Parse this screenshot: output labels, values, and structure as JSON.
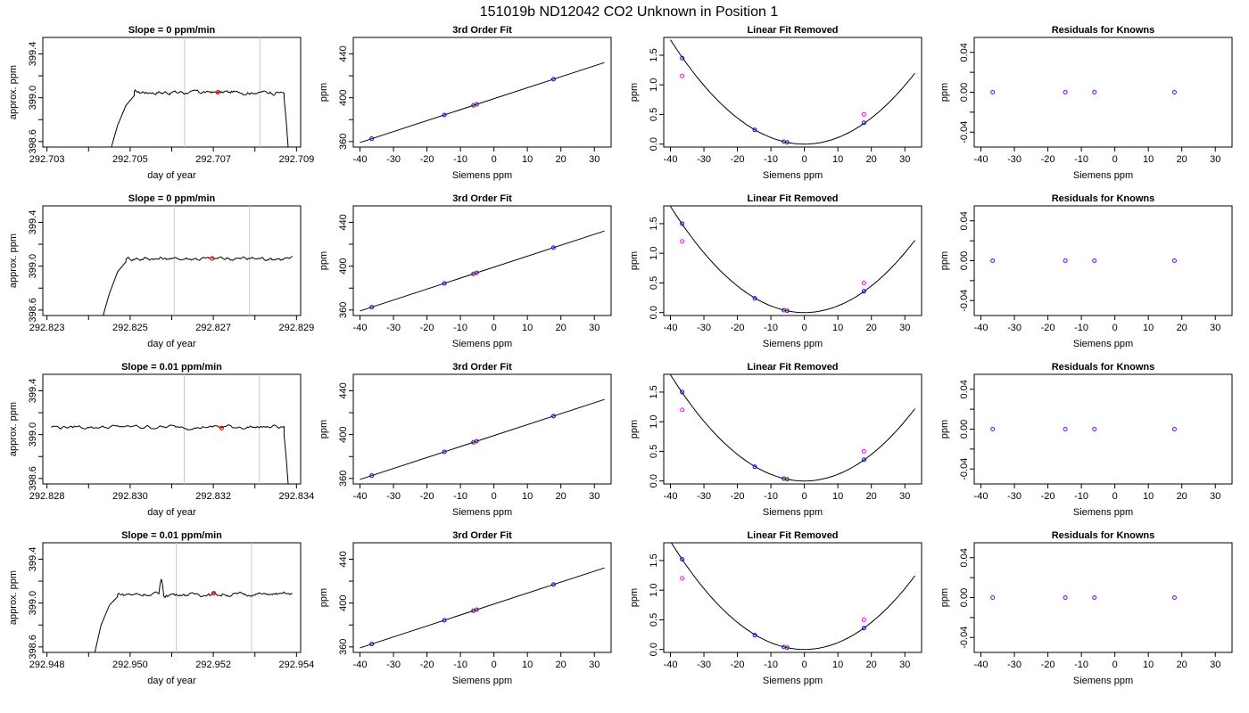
{
  "page_title": "151019b     ND12042    CO2 Unknown in Position  1",
  "chart_data": [
    {
      "type": "line",
      "row": 0,
      "col": 0,
      "title": "Slope =  0  ppm/min",
      "xlabel": "day of year",
      "ylabel": "approx. ppm",
      "xlim": [
        292.7029,
        292.7091
      ],
      "ylim": [
        398.55,
        399.55
      ],
      "xticks": [
        292.703,
        292.704,
        292.705,
        292.706,
        292.707,
        292.708,
        292.709
      ],
      "xticklabels": [
        "292.703",
        "",
        "292.705",
        "",
        "292.707",
        "",
        "292.709"
      ],
      "yticks": [
        398.6,
        398.8,
        399.0,
        399.2,
        399.4
      ],
      "yticklabels": [
        "398.6",
        "",
        "399.0",
        "",
        "399.4"
      ],
      "rise": [
        [
          292.70455,
          398.55
        ],
        [
          292.7047,
          398.75
        ],
        [
          292.7049,
          398.93
        ],
        [
          292.7051,
          399.02
        ]
      ],
      "plateau_x": [
        292.7051,
        292.7087
      ],
      "plateau_mean": 399.05,
      "plateau_noise": 0.012,
      "fall": [
        [
          292.7087,
          399.0
        ],
        [
          292.70875,
          398.8
        ],
        [
          292.7088,
          398.55
        ]
      ],
      "vlines": [
        292.70631,
        292.70812
      ],
      "marker": [
        292.70711,
        399.05
      ]
    },
    {
      "type": "line",
      "row": 1,
      "col": 0,
      "title": "Slope =  0  ppm/min",
      "xlabel": "day of year",
      "ylabel": "approx. ppm",
      "xlim": [
        292.8229,
        292.8291
      ],
      "ylim": [
        398.55,
        399.55
      ],
      "xticks": [
        292.823,
        292.824,
        292.825,
        292.826,
        292.827,
        292.828,
        292.829
      ],
      "xticklabels": [
        "292.823",
        "",
        "292.825",
        "",
        "292.827",
        "",
        "292.829"
      ],
      "yticks": [
        398.6,
        398.8,
        399.0,
        399.2,
        399.4
      ],
      "yticklabels": [
        "398.6",
        "",
        "399.0",
        "",
        "399.4"
      ],
      "rise": [
        [
          292.82435,
          398.55
        ],
        [
          292.8245,
          398.75
        ],
        [
          292.8247,
          398.95
        ],
        [
          292.8249,
          399.04
        ]
      ],
      "plateau_x": [
        292.8249,
        292.8289
      ],
      "plateau_mean": 399.07,
      "plateau_noise": 0.012,
      "fall": [],
      "vlines": [
        292.82606,
        292.82787
      ],
      "marker": [
        292.82697,
        399.07
      ]
    },
    {
      "type": "line",
      "row": 2,
      "col": 0,
      "title": "Slope =  0.01  ppm/min",
      "xlabel": "day of year",
      "ylabel": "approx. ppm",
      "xlim": [
        292.8279,
        292.8341
      ],
      "ylim": [
        398.55,
        399.55
      ],
      "xticks": [
        292.828,
        292.829,
        292.83,
        292.831,
        292.832,
        292.833,
        292.834
      ],
      "xticklabels": [
        "292.828",
        "",
        "292.830",
        "",
        "292.832",
        "",
        "292.834"
      ],
      "yticks": [
        398.6,
        398.8,
        399.0,
        399.2,
        399.4
      ],
      "yticklabels": [
        "398.6",
        "",
        "399.0",
        "",
        "399.4"
      ],
      "rise": [],
      "plateau_x": [
        292.8281,
        292.8337
      ],
      "plateau_mean": 399.07,
      "plateau_noise": 0.012,
      "fall": [
        [
          292.8337,
          399.0
        ],
        [
          292.83375,
          398.8
        ],
        [
          292.8338,
          398.55
        ]
      ],
      "vlines": [
        292.8313,
        292.83311
      ],
      "marker": [
        292.8322,
        399.06
      ]
    },
    {
      "type": "line",
      "row": 3,
      "col": 0,
      "title": "Slope =  0.01  ppm/min",
      "xlabel": "day of year",
      "ylabel": "approx. ppm",
      "xlim": [
        292.9479,
        292.9541
      ],
      "ylim": [
        398.55,
        399.55
      ],
      "xticks": [
        292.948,
        292.949,
        292.95,
        292.951,
        292.952,
        292.953,
        292.954
      ],
      "xticklabels": [
        "292.948",
        "",
        "292.950",
        "",
        "292.952",
        "",
        "292.954"
      ],
      "yticks": [
        398.6,
        398.8,
        399.0,
        399.2,
        399.4
      ],
      "yticklabels": [
        "398.6",
        "",
        "399.0",
        "",
        "399.4"
      ],
      "rise": [
        [
          292.94915,
          398.55
        ],
        [
          292.9493,
          398.8
        ],
        [
          292.9495,
          398.98
        ],
        [
          292.9497,
          399.06
        ]
      ],
      "plateau_x": [
        292.9497,
        292.9539
      ],
      "plateau_mean": 399.08,
      "plateau_noise": 0.012,
      "spike": [
        292.95075,
        399.22
      ],
      "fall": [],
      "vlines": [
        292.95111,
        292.95292
      ],
      "marker": [
        292.95201,
        399.09
      ]
    },
    {
      "type": "scatter",
      "row": 0,
      "col": 1,
      "title": "3rd Order Fit",
      "xlabel": "Siemens ppm",
      "ylabel": "ppm",
      "xlim": [
        -42,
        35
      ],
      "ylim": [
        355,
        455
      ],
      "xticks": [
        -40,
        -30,
        -20,
        -10,
        0,
        10,
        20,
        30
      ],
      "yticks": [
        360,
        380,
        400,
        420,
        440
      ],
      "yticklabels": [
        "360",
        "",
        "400",
        "",
        "440"
      ],
      "line": {
        "slope": 1.0,
        "intercept": 399.1,
        "xrange": [
          -40,
          33
        ]
      },
      "points": [
        [
          -36.5,
          362.6
        ],
        [
          -14.8,
          384.3
        ],
        [
          -6.1,
          393.0
        ],
        [
          -5.2,
          393.9
        ],
        [
          17.8,
          416.9
        ]
      ],
      "unknown": [
        -5.6,
        393.5
      ]
    },
    {
      "type": "scatter",
      "row": 1,
      "col": 1,
      "title": "3rd Order Fit",
      "xlabel": "Siemens ppm",
      "ylabel": "ppm",
      "xlim": [
        -42,
        35
      ],
      "ylim": [
        355,
        455
      ],
      "xticks": [
        -40,
        -30,
        -20,
        -10,
        0,
        10,
        20,
        30
      ],
      "yticks": [
        360,
        380,
        400,
        420,
        440
      ],
      "yticklabels": [
        "360",
        "",
        "400",
        "",
        "440"
      ],
      "line": {
        "slope": 1.0,
        "intercept": 399.1,
        "xrange": [
          -40,
          33
        ]
      },
      "points": [
        [
          -36.5,
          362.6
        ],
        [
          -14.8,
          384.3
        ],
        [
          -6.1,
          393.0
        ],
        [
          -5.2,
          393.9
        ],
        [
          17.8,
          416.9
        ]
      ],
      "unknown": [
        -5.6,
        393.5
      ]
    },
    {
      "type": "scatter",
      "row": 2,
      "col": 1,
      "title": "3rd Order Fit",
      "xlabel": "Siemens ppm",
      "ylabel": "ppm",
      "xlim": [
        -42,
        35
      ],
      "ylim": [
        355,
        455
      ],
      "xticks": [
        -40,
        -30,
        -20,
        -10,
        0,
        10,
        20,
        30
      ],
      "yticks": [
        360,
        380,
        400,
        420,
        440
      ],
      "yticklabels": [
        "360",
        "",
        "400",
        "",
        "440"
      ],
      "line": {
        "slope": 1.0,
        "intercept": 399.1,
        "xrange": [
          -40,
          33
        ]
      },
      "points": [
        [
          -36.5,
          362.6
        ],
        [
          -14.8,
          384.3
        ],
        [
          -6.1,
          393.0
        ],
        [
          -5.2,
          393.9
        ],
        [
          17.8,
          416.9
        ]
      ],
      "unknown": [
        -5.6,
        393.5
      ]
    },
    {
      "type": "scatter",
      "row": 3,
      "col": 1,
      "title": "3rd Order Fit",
      "xlabel": "Siemens ppm",
      "ylabel": "ppm",
      "xlim": [
        -42,
        35
      ],
      "ylim": [
        355,
        455
      ],
      "xticks": [
        -40,
        -30,
        -20,
        -10,
        0,
        10,
        20,
        30
      ],
      "yticks": [
        360,
        380,
        400,
        420,
        440
      ],
      "yticklabels": [
        "360",
        "",
        "400",
        "",
        "440"
      ],
      "line": {
        "slope": 1.0,
        "intercept": 399.1,
        "xrange": [
          -40,
          33
        ]
      },
      "points": [
        [
          -36.5,
          362.6
        ],
        [
          -14.8,
          384.3
        ],
        [
          -6.1,
          393.0
        ],
        [
          -5.2,
          393.9
        ],
        [
          17.8,
          416.9
        ]
      ],
      "unknown": [
        -5.6,
        393.5
      ]
    },
    {
      "type": "scatter",
      "row": 0,
      "col": 2,
      "title": "Linear Fit Removed",
      "xlabel": "Siemens ppm",
      "ylabel": "ppm",
      "xlim": [
        -42,
        35
      ],
      "ylim": [
        -0.05,
        1.8
      ],
      "xticks": [
        -40,
        -30,
        -20,
        -10,
        0,
        10,
        20,
        30
      ],
      "yticks": [
        0.0,
        0.5,
        1.0,
        1.5
      ],
      "yticklabels": [
        "0.0",
        "0.5",
        "1.0",
        "1.5"
      ],
      "curve": {
        "a": 0.0011,
        "xrange": [
          -40,
          33
        ]
      },
      "fit_points": [
        [
          -36.5,
          1.45
        ],
        [
          -14.8,
          0.24
        ],
        [
          -6.1,
          0.04
        ],
        [
          -5.2,
          0.03
        ],
        [
          17.8,
          0.36
        ]
      ],
      "raw_points": [
        [
          -36.5,
          1.15
        ],
        [
          17.8,
          0.5
        ]
      ],
      "unknown": [
        -5.6,
        0.035
      ]
    },
    {
      "type": "scatter",
      "row": 1,
      "col": 2,
      "title": "Linear Fit Removed",
      "xlabel": "Siemens ppm",
      "ylabel": "ppm",
      "xlim": [
        -42,
        35
      ],
      "ylim": [
        -0.05,
        1.8
      ],
      "xticks": [
        -40,
        -30,
        -20,
        -10,
        0,
        10,
        20,
        30
      ],
      "yticks": [
        0.0,
        0.5,
        1.0,
        1.5
      ],
      "yticklabels": [
        "0.0",
        "0.5",
        "1.0",
        "1.5"
      ],
      "curve": {
        "a": 0.00112,
        "xrange": [
          -40,
          33
        ]
      },
      "fit_points": [
        [
          -36.5,
          1.5
        ],
        [
          -14.8,
          0.24
        ],
        [
          -6.1,
          0.04
        ],
        [
          -5.2,
          0.03
        ],
        [
          17.8,
          0.36
        ]
      ],
      "raw_points": [
        [
          -36.5,
          1.2
        ],
        [
          17.8,
          0.5
        ]
      ],
      "unknown": [
        -5.6,
        0.035
      ]
    },
    {
      "type": "scatter",
      "row": 2,
      "col": 2,
      "title": "Linear Fit Removed",
      "xlabel": "Siemens ppm",
      "ylabel": "ppm",
      "xlim": [
        -42,
        35
      ],
      "ylim": [
        -0.05,
        1.8
      ],
      "xticks": [
        -40,
        -30,
        -20,
        -10,
        0,
        10,
        20,
        30
      ],
      "yticks": [
        0.0,
        0.5,
        1.0,
        1.5
      ],
      "yticklabels": [
        "0.0",
        "0.5",
        "1.0",
        "1.5"
      ],
      "curve": {
        "a": 0.00112,
        "xrange": [
          -40,
          33
        ]
      },
      "fit_points": [
        [
          -36.5,
          1.5
        ],
        [
          -14.8,
          0.24
        ],
        [
          -6.1,
          0.04
        ],
        [
          -5.2,
          0.03
        ],
        [
          17.8,
          0.36
        ]
      ],
      "raw_points": [
        [
          -36.5,
          1.2
        ],
        [
          17.8,
          0.5
        ]
      ],
      "unknown": [
        -5.6,
        0.035
      ]
    },
    {
      "type": "scatter",
      "row": 3,
      "col": 2,
      "title": "Linear Fit Removed",
      "xlabel": "Siemens ppm",
      "ylabel": "ppm",
      "xlim": [
        -42,
        35
      ],
      "ylim": [
        -0.05,
        1.8
      ],
      "xticks": [
        -40,
        -30,
        -20,
        -10,
        0,
        10,
        20,
        30
      ],
      "yticks": [
        0.0,
        0.5,
        1.0,
        1.5
      ],
      "yticklabels": [
        "0.0",
        "0.5",
        "1.0",
        "1.5"
      ],
      "curve": {
        "a": 0.00114,
        "xrange": [
          -40,
          33
        ]
      },
      "fit_points": [
        [
          -36.5,
          1.52
        ],
        [
          -14.8,
          0.24
        ],
        [
          -6.1,
          0.04
        ],
        [
          -5.2,
          0.03
        ],
        [
          17.8,
          0.36
        ]
      ],
      "raw_points": [
        [
          -36.5,
          1.2
        ],
        [
          17.8,
          0.5
        ]
      ],
      "unknown": [
        -5.6,
        0.035
      ]
    },
    {
      "type": "scatter",
      "row": 0,
      "col": 3,
      "title": "Residuals for Knowns",
      "xlabel": "Siemens ppm",
      "ylabel": "ppm",
      "xlim": [
        -42,
        35
      ],
      "ylim": [
        -0.055,
        0.055
      ],
      "xticks": [
        -40,
        -30,
        -20,
        -10,
        0,
        10,
        20,
        30
      ],
      "yticks": [
        -0.04,
        -0.02,
        0.0,
        0.02,
        0.04
      ],
      "yticklabels": [
        "-0.04",
        "",
        "0.00",
        "",
        "0.04"
      ],
      "points": [
        [
          -36.5,
          0.0
        ],
        [
          -14.8,
          0.0
        ],
        [
          -6.1,
          0.0
        ],
        [
          17.8,
          0.0
        ]
      ]
    },
    {
      "type": "scatter",
      "row": 1,
      "col": 3,
      "title": "Residuals for Knowns",
      "xlabel": "Siemens ppm",
      "ylabel": "ppm",
      "xlim": [
        -42,
        35
      ],
      "ylim": [
        -0.055,
        0.055
      ],
      "xticks": [
        -40,
        -30,
        -20,
        -10,
        0,
        10,
        20,
        30
      ],
      "yticks": [
        -0.04,
        -0.02,
        0.0,
        0.02,
        0.04
      ],
      "yticklabels": [
        "-0.04",
        "",
        "0.00",
        "",
        "0.04"
      ],
      "points": [
        [
          -36.5,
          0.0
        ],
        [
          -14.8,
          0.0
        ],
        [
          -6.1,
          0.0
        ],
        [
          17.8,
          0.0
        ]
      ]
    },
    {
      "type": "scatter",
      "row": 2,
      "col": 3,
      "title": "Residuals for Knowns",
      "xlabel": "Siemens ppm",
      "ylabel": "ppm",
      "xlim": [
        -42,
        35
      ],
      "ylim": [
        -0.055,
        0.055
      ],
      "xticks": [
        -40,
        -30,
        -20,
        -10,
        0,
        10,
        20,
        30
      ],
      "yticks": [
        -0.04,
        -0.02,
        0.0,
        0.02,
        0.04
      ],
      "yticklabels": [
        "-0.04",
        "",
        "0.00",
        "",
        "0.04"
      ],
      "points": [
        [
          -36.5,
          0.0
        ],
        [
          -14.8,
          0.0
        ],
        [
          -6.1,
          0.0
        ],
        [
          17.8,
          0.0
        ]
      ]
    },
    {
      "type": "scatter",
      "row": 3,
      "col": 3,
      "title": "Residuals for Knowns",
      "xlabel": "Siemens ppm",
      "ylabel": "ppm",
      "xlim": [
        -42,
        35
      ],
      "ylim": [
        -0.055,
        0.055
      ],
      "xticks": [
        -40,
        -30,
        -20,
        -10,
        0,
        10,
        20,
        30
      ],
      "yticks": [
        -0.04,
        -0.02,
        0.0,
        0.02,
        0.04
      ],
      "yticklabels": [
        "-0.04",
        "",
        "0.00",
        "",
        "0.04"
      ],
      "points": [
        [
          -36.5,
          0.0
        ],
        [
          -14.8,
          0.0
        ],
        [
          -6.1,
          0.0
        ],
        [
          17.8,
          0.0
        ]
      ]
    }
  ],
  "colors": {
    "axis": "#000000",
    "line": "#000000",
    "vline": "#c8c8c8",
    "marker": "#ff0000",
    "fit_point": "#0000ff",
    "raw_point": "#ff00ff",
    "unknown": "#ff8c00",
    "residual": "#7000ff"
  }
}
